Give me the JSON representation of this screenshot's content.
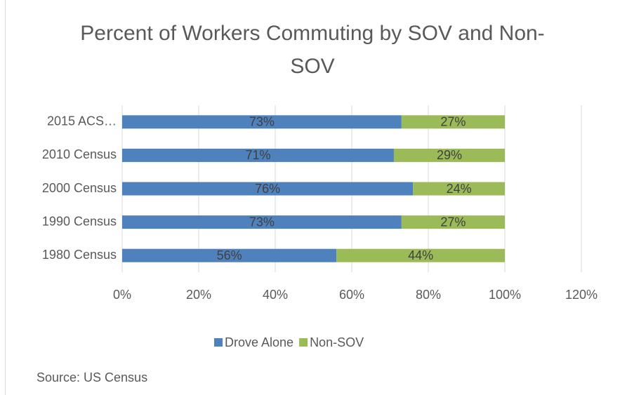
{
  "chart_data": {
    "type": "stacked-bar-horizontal",
    "title": "Percent of Workers Commuting by SOV and Non-SOV",
    "categories": [
      "2015 ACS…",
      "2010 Census",
      "2000 Census",
      "1990 Census",
      "1980 Census"
    ],
    "series": [
      {
        "name": "Drove Alone",
        "color": "#4f81bd",
        "values": [
          73,
          71,
          76,
          73,
          56
        ],
        "value_labels": [
          "73%",
          "71%",
          "76%",
          "73%",
          "56%"
        ]
      },
      {
        "name": "Non-SOV",
        "color": "#9bbb59",
        "values": [
          27,
          29,
          24,
          27,
          44
        ],
        "value_labels": [
          "27%",
          "29%",
          "24%",
          "27%",
          "44%"
        ]
      }
    ],
    "xlim": [
      0,
      120
    ],
    "xticks": [
      {
        "value": 0,
        "label": "0%"
      },
      {
        "value": 20,
        "label": "20%"
      },
      {
        "value": 40,
        "label": "40%"
      },
      {
        "value": 60,
        "label": "60%"
      },
      {
        "value": 80,
        "label": "80%"
      },
      {
        "value": 100,
        "label": "100%"
      },
      {
        "value": 120,
        "label": "120%"
      }
    ],
    "grid": true,
    "legend": "bottom",
    "source": "Source: US Census"
  }
}
